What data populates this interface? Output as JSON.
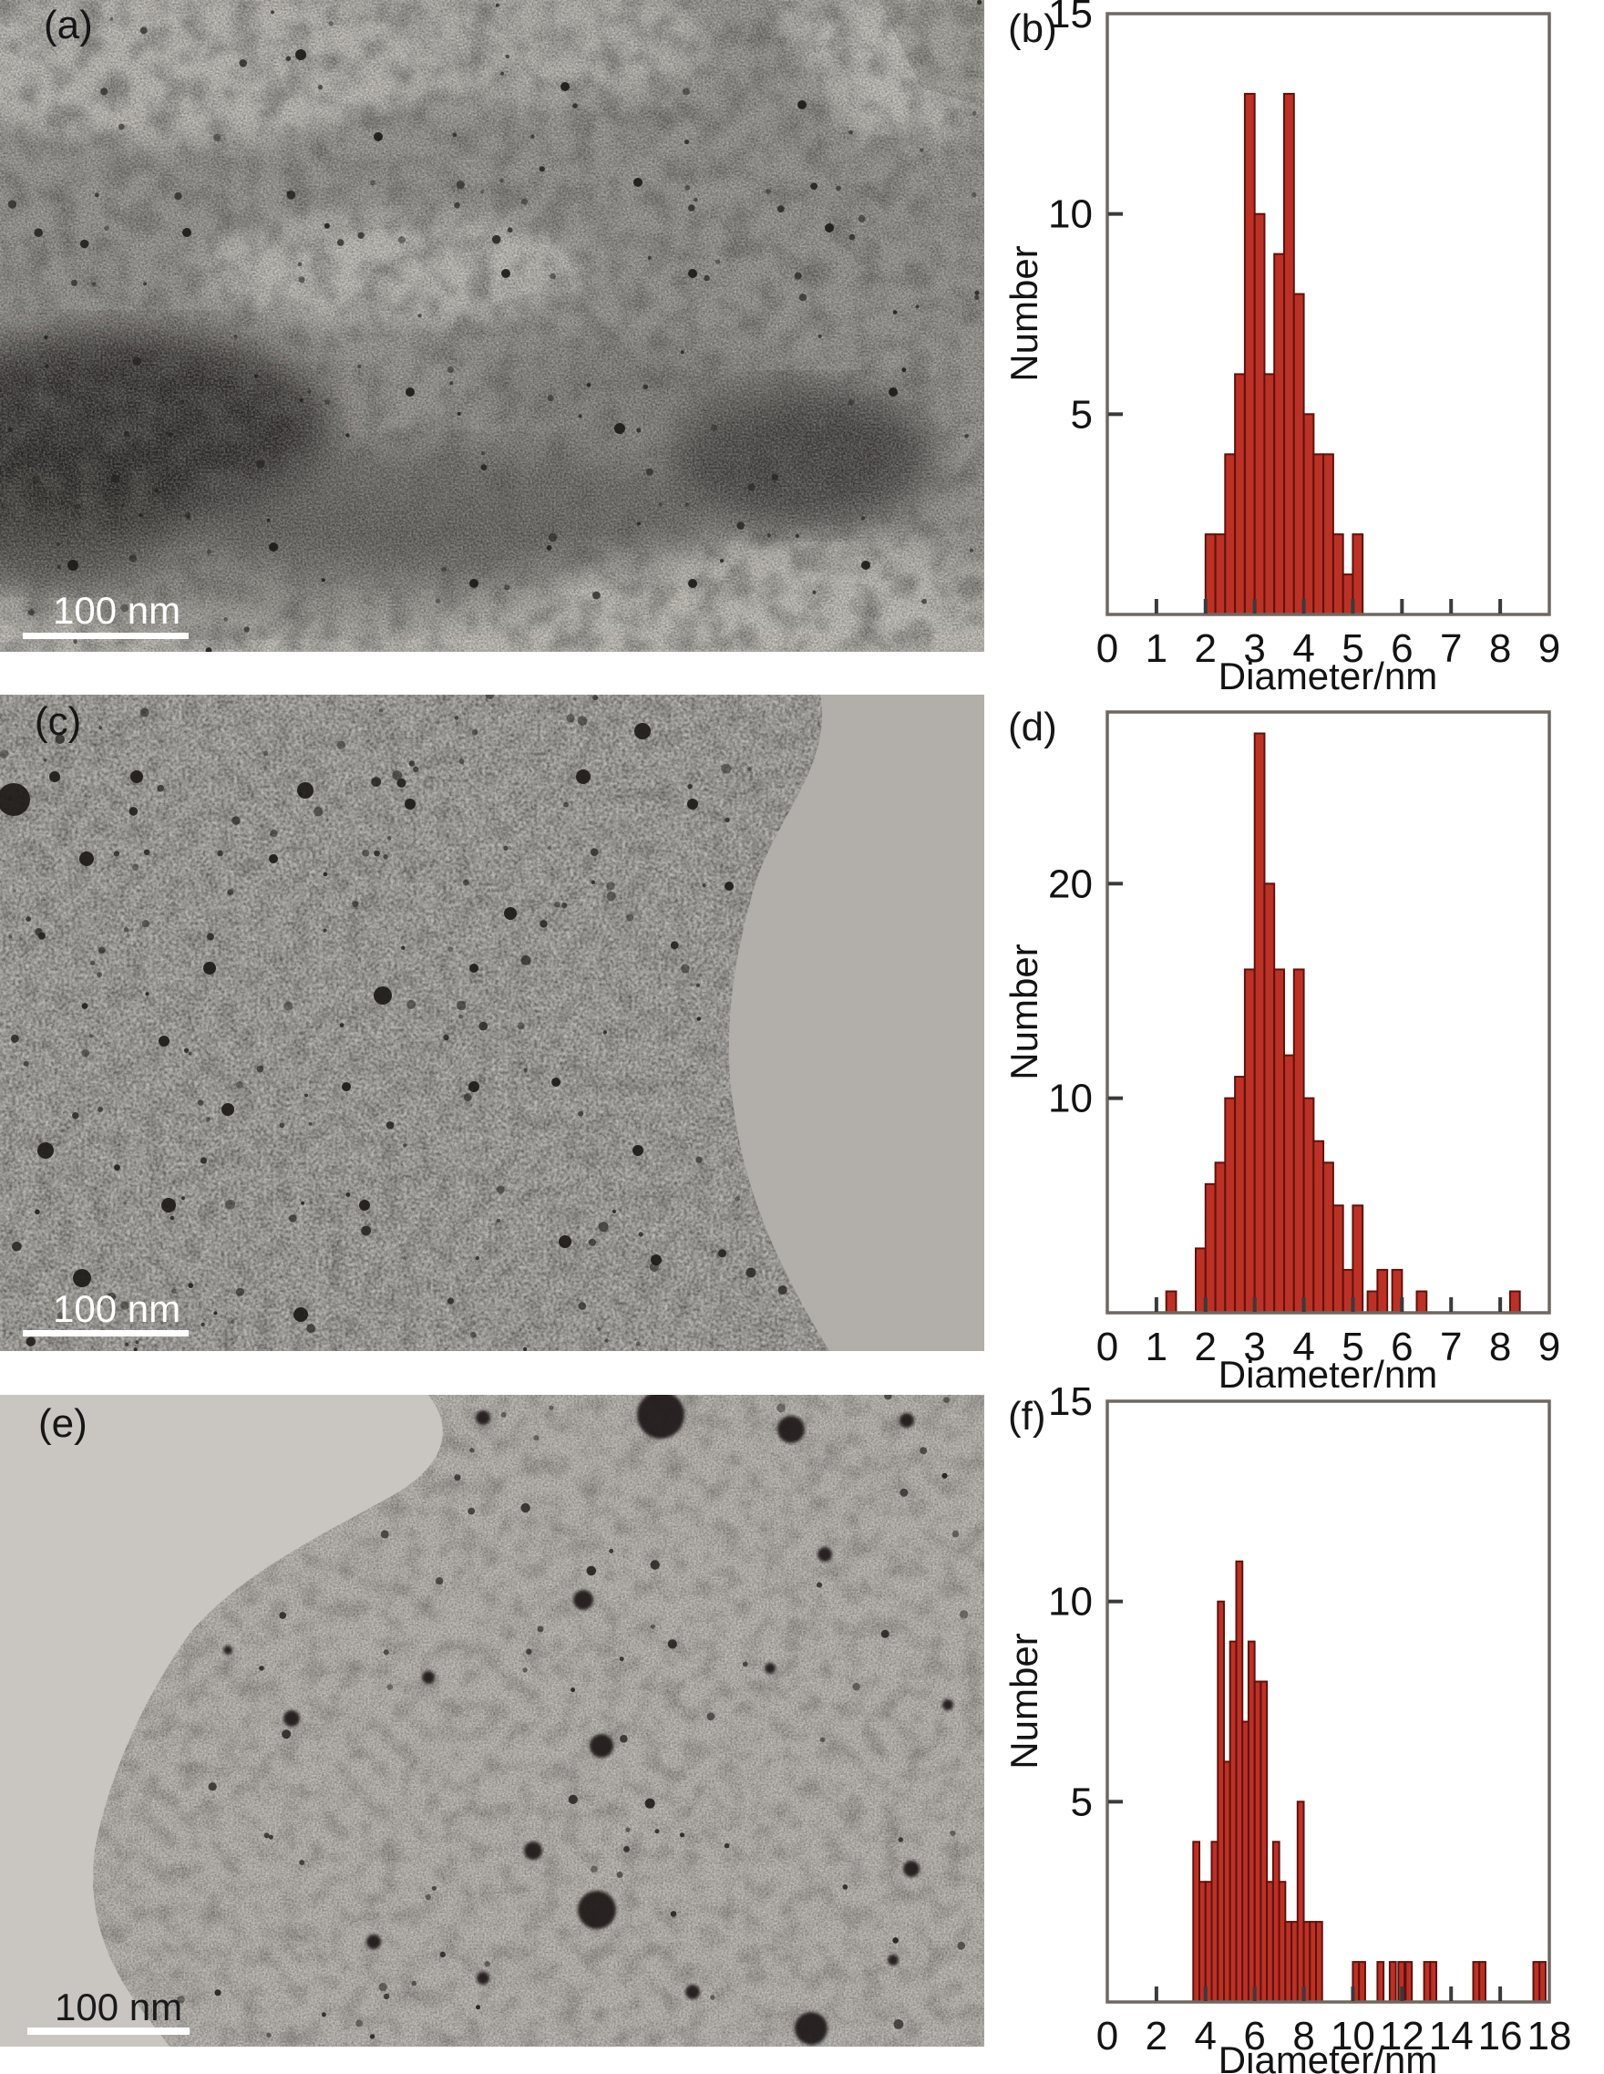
{
  "panels": {
    "a": {
      "label": "(a)",
      "scale_bar": "100 nm"
    },
    "b": {
      "label": "(b)",
      "xlabel": "Diameter/nm",
      "ylabel": "Number"
    },
    "c": {
      "label": "(c)",
      "scale_bar": "100 nm"
    },
    "d": {
      "label": "(d)",
      "xlabel": "Diameter/nm",
      "ylabel": "Number"
    },
    "e": {
      "label": "(e)",
      "scale_bar": "100 nm"
    },
    "f": {
      "label": "(f)",
      "xlabel": "Diameter/nm",
      "ylabel": "Number"
    }
  },
  "colors": {
    "bar_fill": "#bc3126",
    "bar_edge": "#5f120c",
    "frame": "#6f6862",
    "tick": "#3a3a3a",
    "label": "#131313"
  },
  "chart_data": [
    {
      "id": "b",
      "type": "bar",
      "title": "",
      "xlabel": "Diameter/nm",
      "ylabel": "Number",
      "xlim": [
        0,
        9
      ],
      "ylim": [
        0,
        15
      ],
      "xticks": [
        0,
        1,
        2,
        3,
        4,
        5,
        6,
        7,
        8,
        9
      ],
      "yticks": [
        5,
        10,
        15
      ],
      "bin_width": 0.2,
      "bars": [
        {
          "x": 2.0,
          "n": 2
        },
        {
          "x": 2.2,
          "n": 2
        },
        {
          "x": 2.4,
          "n": 4
        },
        {
          "x": 2.6,
          "n": 6
        },
        {
          "x": 2.8,
          "n": 13
        },
        {
          "x": 3.0,
          "n": 10
        },
        {
          "x": 3.2,
          "n": 6
        },
        {
          "x": 3.4,
          "n": 9
        },
        {
          "x": 3.6,
          "n": 13
        },
        {
          "x": 3.8,
          "n": 8
        },
        {
          "x": 4.0,
          "n": 5
        },
        {
          "x": 4.2,
          "n": 4
        },
        {
          "x": 4.4,
          "n": 4
        },
        {
          "x": 4.6,
          "n": 2
        },
        {
          "x": 4.8,
          "n": 1
        },
        {
          "x": 5.0,
          "n": 2
        }
      ]
    },
    {
      "id": "d",
      "type": "bar",
      "title": "",
      "xlabel": "Diameter/nm",
      "ylabel": "Number",
      "xlim": [
        0,
        9
      ],
      "ylim": [
        0,
        28
      ],
      "xticks": [
        0,
        1,
        2,
        3,
        4,
        5,
        6,
        7,
        8,
        9
      ],
      "yticks": [
        10,
        20
      ],
      "bin_width": 0.2,
      "bars": [
        {
          "x": 1.2,
          "n": 1
        },
        {
          "x": 1.8,
          "n": 3
        },
        {
          "x": 2.0,
          "n": 6
        },
        {
          "x": 2.2,
          "n": 7
        },
        {
          "x": 2.4,
          "n": 10
        },
        {
          "x": 2.6,
          "n": 11
        },
        {
          "x": 2.8,
          "n": 16
        },
        {
          "x": 3.0,
          "n": 27
        },
        {
          "x": 3.2,
          "n": 20
        },
        {
          "x": 3.4,
          "n": 16
        },
        {
          "x": 3.6,
          "n": 12
        },
        {
          "x": 3.8,
          "n": 16
        },
        {
          "x": 4.0,
          "n": 10
        },
        {
          "x": 4.2,
          "n": 8
        },
        {
          "x": 4.4,
          "n": 7
        },
        {
          "x": 4.6,
          "n": 5
        },
        {
          "x": 4.8,
          "n": 2
        },
        {
          "x": 5.0,
          "n": 5
        },
        {
          "x": 5.3,
          "n": 1
        },
        {
          "x": 5.5,
          "n": 2
        },
        {
          "x": 5.8,
          "n": 2
        },
        {
          "x": 6.3,
          "n": 1
        },
        {
          "x": 8.2,
          "n": 1
        }
      ]
    },
    {
      "id": "f",
      "type": "bar",
      "title": "",
      "xlabel": "Diameter/nm",
      "ylabel": "Number",
      "xlim": [
        0,
        18
      ],
      "ylim": [
        0,
        15
      ],
      "xticks": [
        0,
        2,
        4,
        6,
        8,
        10,
        12,
        14,
        16,
        18
      ],
      "yticks": [
        5,
        10,
        15
      ],
      "bin_width": 0.25,
      "bars": [
        {
          "x": 3.5,
          "n": 4
        },
        {
          "x": 3.75,
          "n": 3
        },
        {
          "x": 4.0,
          "n": 3
        },
        {
          "x": 4.25,
          "n": 4
        },
        {
          "x": 4.5,
          "n": 10
        },
        {
          "x": 4.75,
          "n": 6
        },
        {
          "x": 5.0,
          "n": 9
        },
        {
          "x": 5.25,
          "n": 11
        },
        {
          "x": 5.5,
          "n": 7
        },
        {
          "x": 5.75,
          "n": 9
        },
        {
          "x": 6.0,
          "n": 8
        },
        {
          "x": 6.25,
          "n": 8
        },
        {
          "x": 6.5,
          "n": 3
        },
        {
          "x": 6.75,
          "n": 4
        },
        {
          "x": 7.0,
          "n": 3
        },
        {
          "x": 7.25,
          "n": 2
        },
        {
          "x": 7.5,
          "n": 2
        },
        {
          "x": 7.75,
          "n": 5
        },
        {
          "x": 8.0,
          "n": 2
        },
        {
          "x": 8.25,
          "n": 2
        },
        {
          "x": 8.5,
          "n": 2
        },
        {
          "x": 10.0,
          "n": 1
        },
        {
          "x": 10.25,
          "n": 1
        },
        {
          "x": 11.0,
          "n": 1
        },
        {
          "x": 11.5,
          "n": 1
        },
        {
          "x": 11.85,
          "n": 1
        },
        {
          "x": 12.15,
          "n": 1
        },
        {
          "x": 12.9,
          "n": 1
        },
        {
          "x": 13.15,
          "n": 1
        },
        {
          "x": 14.9,
          "n": 1
        },
        {
          "x": 15.15,
          "n": 1
        },
        {
          "x": 17.35,
          "n": 1
        },
        {
          "x": 17.6,
          "n": 1
        }
      ]
    }
  ]
}
